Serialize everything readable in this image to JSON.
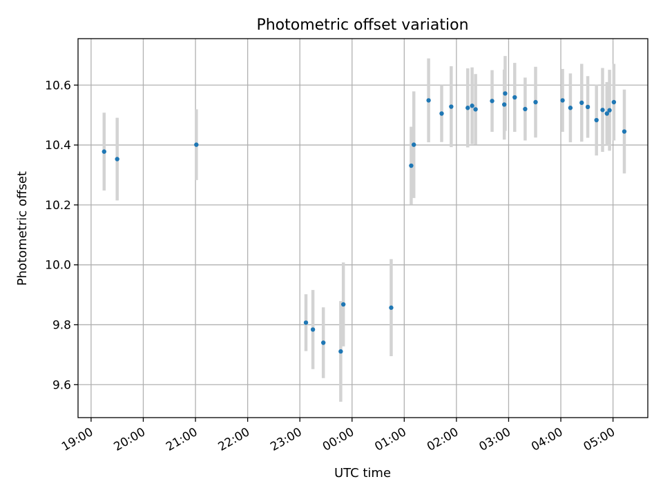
{
  "chart_data": {
    "type": "scatter",
    "title": "Photometric offset variation",
    "xlabel": "UTC time",
    "ylabel": "Photometric offset",
    "x_ticks": [
      "19:00",
      "20:00",
      "21:00",
      "22:00",
      "23:00",
      "00:00",
      "01:00",
      "02:00",
      "03:00",
      "04:00",
      "05:00"
    ],
    "y_ticks": [
      "9.6",
      "9.8",
      "10.0",
      "10.2",
      "10.4",
      "10.6"
    ],
    "xlim": [
      "18:45",
      "05:40"
    ],
    "ylim": [
      9.49,
      10.755
    ],
    "grid": true,
    "colors": {
      "point": "#1f77b4",
      "errorbar": "#d3d3d3"
    },
    "series": [
      {
        "points": [
          {
            "x": "19:15",
            "y": 10.378,
            "err": 0.13
          },
          {
            "x": "19:30",
            "y": 10.353,
            "err": 0.138
          },
          {
            "x": "21:01",
            "y": 10.401,
            "err": 0.118
          },
          {
            "x": "23:07",
            "y": 9.807,
            "err": 0.095
          },
          {
            "x": "23:15",
            "y": 9.784,
            "err": 0.132
          },
          {
            "x": "23:27",
            "y": 9.74,
            "err": 0.118
          },
          {
            "x": "23:47",
            "y": 9.711,
            "err": 0.168
          },
          {
            "x": "23:50",
            "y": 9.868,
            "err": 0.14
          },
          {
            "x": "00:45",
            "y": 9.857,
            "err": 0.162
          },
          {
            "x": "01:08",
            "y": 10.331,
            "err": 0.13
          },
          {
            "x": "01:11",
            "y": 10.401,
            "err": 0.178
          },
          {
            "x": "01:28",
            "y": 10.549,
            "err": 0.14
          },
          {
            "x": "01:43",
            "y": 10.505,
            "err": 0.095
          },
          {
            "x": "01:54",
            "y": 10.528,
            "err": 0.135
          },
          {
            "x": "02:13",
            "y": 10.524,
            "err": 0.132
          },
          {
            "x": "02:18",
            "y": 10.531,
            "err": 0.128
          },
          {
            "x": "02:22",
            "y": 10.519,
            "err": 0.118
          },
          {
            "x": "02:41",
            "y": 10.547,
            "err": 0.103
          },
          {
            "x": "02:55",
            "y": 10.535,
            "err": 0.117
          },
          {
            "x": "02:56",
            "y": 10.572,
            "err": 0.125
          },
          {
            "x": "03:07",
            "y": 10.559,
            "err": 0.115
          },
          {
            "x": "03:19",
            "y": 10.52,
            "err": 0.105
          },
          {
            "x": "03:31",
            "y": 10.543,
            "err": 0.118
          },
          {
            "x": "04:02",
            "y": 10.549,
            "err": 0.105
          },
          {
            "x": "04:11",
            "y": 10.524,
            "err": 0.115
          },
          {
            "x": "04:24",
            "y": 10.541,
            "err": 0.13
          },
          {
            "x": "04:31",
            "y": 10.527,
            "err": 0.103
          },
          {
            "x": "04:41",
            "y": 10.483,
            "err": 0.118
          },
          {
            "x": "04:48",
            "y": 10.517,
            "err": 0.14
          },
          {
            "x": "04:53",
            "y": 10.505,
            "err": 0.105
          },
          {
            "x": "04:56",
            "y": 10.516,
            "err": 0.135
          },
          {
            "x": "05:01",
            "y": 10.543,
            "err": 0.128
          },
          {
            "x": "05:13",
            "y": 10.445,
            "err": 0.14
          }
        ]
      }
    ]
  }
}
